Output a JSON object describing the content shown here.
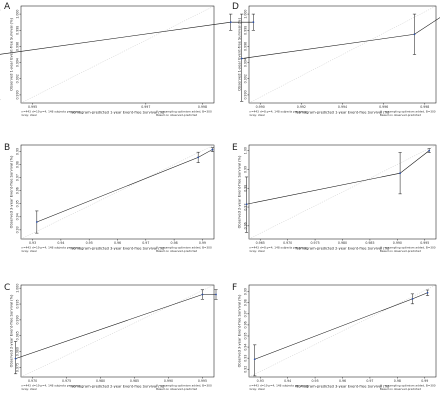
{
  "chart_data": [
    {
      "panel": "A",
      "type": "line",
      "xlabel": "Nomogram-predicted 1-year Event-free Survival (%)",
      "ylabel": "Observed 1-year Event-free Survival (%)",
      "xticks": [
        "0.995",
        "0.997",
        "0.998"
      ],
      "yticks": [
        "0.990",
        "0.992",
        "0.994",
        "0.996",
        "0.998",
        "1.000"
      ],
      "ylim": [
        0.989,
        1.001
      ],
      "x": [
        0.9944,
        0.9985,
        0.9989
      ],
      "y": [
        0.995,
        0.999,
        0.999
      ],
      "lo": [
        0.9894,
        0.998,
        0.998
      ],
      "hi": [
        1.0005,
        1.0,
        1.0
      ],
      "footer_left": [
        "n=443 d=19 p=4, 148 subjects per group",
        "Gray: ideal"
      ],
      "footer_right": [
        "X – resampling optimism added, B=300",
        "Based on observed-predicted"
      ]
    },
    {
      "panel": "B",
      "type": "line",
      "xlabel": "Nomogram-predicted 3-year Event-free Survival (%)",
      "ylabel": "Observed 3-year Event-free Survival (%)",
      "xticks": [
        "0.93",
        "0.94",
        "0.95",
        "0.96",
        "0.97",
        "0.98",
        "0.99"
      ],
      "yticks": [
        "0.93",
        "0.94",
        "0.95",
        "0.96",
        "0.97",
        "0.98",
        "0.99"
      ],
      "ylim": [
        0.923,
        0.995
      ],
      "x": [
        0.9315,
        0.9885,
        0.9935
      ],
      "y": [
        0.936,
        0.9855,
        0.9915
      ],
      "lo": [
        0.9275,
        0.9815,
        0.99
      ],
      "hi": [
        0.9445,
        0.9895,
        0.993
      ],
      "footer_left": [
        "n=443 d=19 p=4, 148 subjects per group",
        "Gray: ideal"
      ],
      "footer_right": [
        "X – resampling optimism added, B=300",
        "Based on observed-predicted"
      ]
    },
    {
      "panel": "C",
      "type": "line",
      "xlabel": "Nomogram-predicted 2-year Event-free Survival (%)",
      "ylabel": "Observed 2-year Event-free Survival (%)",
      "xticks": [
        "0.970",
        "0.975",
        "0.980",
        "0.985",
        "0.990",
        "0.995"
      ],
      "yticks": [
        "0.975",
        "0.980",
        "0.985",
        "0.990",
        "0.995",
        "1.000"
      ],
      "ylim": [
        0.972,
        1.001
      ],
      "x": [
        0.9675,
        0.995,
        0.997
      ],
      "y": [
        0.9778,
        0.998,
        0.998
      ],
      "lo": [
        0.973,
        0.9965,
        0.9965
      ],
      "hi": [
        0.9832,
        0.9995,
        0.9995
      ],
      "footer_left": [
        "n=443 d=19 p=4, 148 subjects per group",
        "Gray: ideal"
      ],
      "footer_right": [
        "X – resampling optimism added, B=300",
        "Based on observed-predicted"
      ]
    },
    {
      "panel": "D",
      "type": "line",
      "xlabel": "Nomogram-predicted 1-year Event-free Survival (%)",
      "ylabel": "Observed 1-year Event-free Survival (%)",
      "xticks": [
        "0.990",
        "0.992",
        "0.994",
        "0.996",
        "0.998"
      ],
      "yticks": [
        "0.990",
        "0.992",
        "0.994",
        "0.996",
        "0.998",
        "1.000"
      ],
      "ylim": [
        0.989,
        1.001
      ],
      "x": [
        0.9891,
        0.9975,
        0.999
      ],
      "y": [
        0.9945,
        0.9975,
        1.0
      ],
      "lo": [
        0.9892,
        0.995,
        0.9998
      ],
      "hi": [
        1.0,
        1.0,
        1.0002
      ],
      "footer_left": [
        "n=443 d=8 p=4, 148 subjects per group",
        "Gray: ideal"
      ],
      "footer_right": [
        "X – resampling optimism added, B=300",
        "Based on observed-predicted"
      ]
    },
    {
      "panel": "E",
      "type": "line",
      "xlabel": "Nomogram-predicted 2-year Event-free Survival (%)",
      "ylabel": "Observed 2-year Event-free Survival (%)",
      "xticks": [
        "0.965",
        "0.970",
        "0.975",
        "0.980",
        "0.985",
        "0.990",
        "0.995"
      ],
      "yticks": [
        "0.96",
        "0.97",
        "0.98",
        "0.99",
        "1.00"
      ],
      "ylim": [
        0.953,
        1.003
      ],
      "x": [
        0.9625,
        0.9905,
        0.9958
      ],
      "y": [
        0.9715,
        0.988,
        1.0
      ],
      "lo": [
        0.9565,
        0.977,
        0.999
      ],
      "hi": [
        0.986,
        0.999,
        1.001
      ],
      "footer_left": [
        "n=443 d=8 p=4, 148 subjects per group",
        "Gray: ideal"
      ],
      "footer_right": [
        "X – resampling optimism added, B=300",
        "Based on observed-predicted"
      ]
    },
    {
      "panel": "F",
      "type": "line",
      "xlabel": "Nomogram-predicted 3-year Event-free Survival (%)",
      "ylabel": "Observed 3-year Event-free Survival (%)",
      "xticks": [
        "0.93",
        "0.94",
        "0.95",
        "0.96",
        "0.97",
        "0.98",
        "0.99"
      ],
      "yticks": [
        "0.92",
        "0.93",
        "0.94",
        "0.95",
        "0.96",
        "0.97",
        "0.98",
        "0.99"
      ],
      "ylim": [
        0.913,
        0.996
      ],
      "x": [
        0.928,
        0.9855,
        0.991
      ],
      "y": [
        0.929,
        0.9835,
        0.989
      ],
      "lo": [
        0.914,
        0.979,
        0.9865
      ],
      "hi": [
        0.942,
        0.988,
        0.9915
      ],
      "footer_left": [
        "n=443 d=19 p=4, 148 subjects per group",
        "Gray: ideal"
      ],
      "footer_right": [
        "X – resampling optimism added, B=300",
        "Based on observed-predicted"
      ]
    }
  ],
  "colors": {
    "line": "#111111",
    "point": "#2b4fa8",
    "ideal": "#bbbbbb",
    "frame": "#000000"
  }
}
